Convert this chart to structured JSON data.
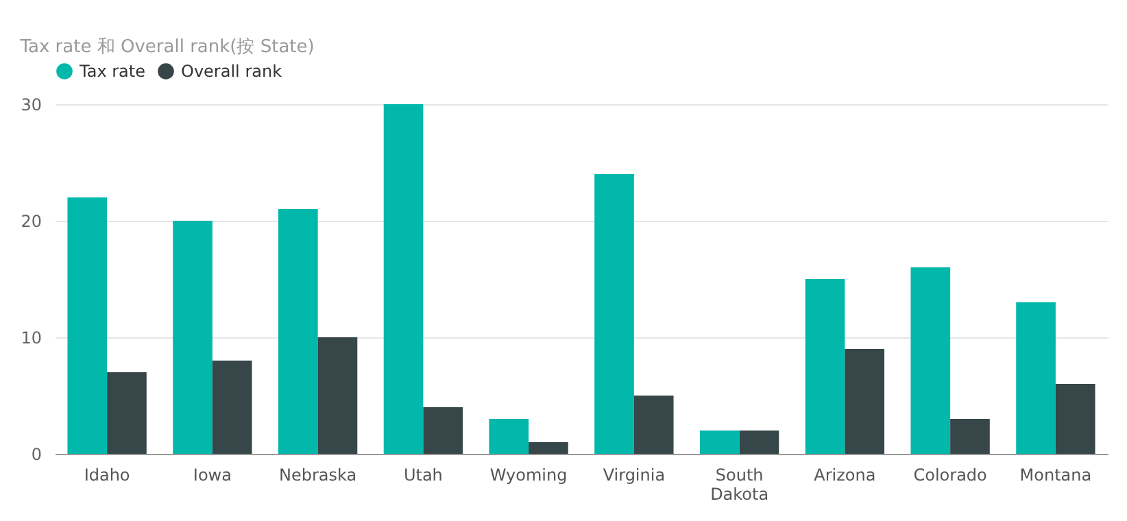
{
  "chart_data": {
    "type": "bar",
    "title": "Tax rate 和 Overall rank(按 State)",
    "categories": [
      "Idaho",
      "Iowa",
      "Nebraska",
      "Utah",
      "Wyoming",
      "Virginia",
      "South Dakota",
      "Arizona",
      "Colorado",
      "Montana"
    ],
    "series": [
      {
        "name": "Tax rate",
        "color": "#01b8aa",
        "values": [
          22,
          20,
          21,
          30,
          3,
          24,
          2,
          15,
          16,
          13
        ]
      },
      {
        "name": "Overall rank",
        "color": "#374649",
        "values": [
          7,
          8,
          10,
          4,
          1,
          5,
          2,
          9,
          3,
          6
        ]
      }
    ],
    "ylim": [
      0,
      30
    ],
    "yticks": [
      0,
      10,
      20,
      30
    ],
    "grid": "y",
    "legend": "top left"
  }
}
